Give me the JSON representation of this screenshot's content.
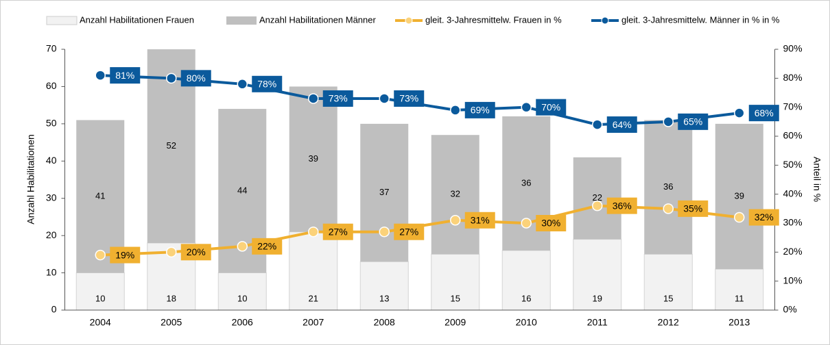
{
  "chart_data": {
    "type": "bar",
    "stacked": true,
    "categories": [
      "2004",
      "2005",
      "2006",
      "2007",
      "2008",
      "2009",
      "2010",
      "2011",
      "2012",
      "2013"
    ],
    "y_label": "Anzahl Habilitationen",
    "y2_label": "Anteil in %",
    "ylim": [
      0,
      70
    ],
    "yticks": [
      0,
      10,
      20,
      30,
      40,
      50,
      60,
      70
    ],
    "y2lim": [
      0,
      90
    ],
    "y2ticks": [
      {
        "value": 0,
        "label": "0%"
      },
      {
        "value": 10,
        "label": "10%"
      },
      {
        "value": 20,
        "label": "20%"
      },
      {
        "value": 30,
        "label": "30%"
      },
      {
        "value": 40,
        "label": "40%"
      },
      {
        "value": 50,
        "label": "50%"
      },
      {
        "value": 60,
        "label": "60%"
      },
      {
        "value": 70,
        "label": "70%"
      },
      {
        "value": 80,
        "label": "80%"
      },
      {
        "value": 90,
        "label": "90%"
      }
    ],
    "grid": false,
    "legend": "top",
    "series": [
      {
        "name": "Anzahl Habilitationen Frauen",
        "type": "bar",
        "color": "#f2f2f2",
        "values": [
          10,
          18,
          10,
          21,
          13,
          15,
          16,
          19,
          15,
          11
        ]
      },
      {
        "name": "Anzahl Habilitationen Männer",
        "type": "bar",
        "color": "#bfbfbf",
        "values": [
          41,
          52,
          44,
          39,
          37,
          32,
          36,
          22,
          36,
          39
        ]
      },
      {
        "name": "gleit. 3-Jahresmittelw. Frauen in %",
        "type": "line",
        "axis": "y2",
        "color": "#f0b030",
        "values": [
          19,
          20,
          22,
          27,
          27,
          31,
          30,
          36,
          35,
          32
        ],
        "value_labels": [
          "19%",
          "20%",
          "22%",
          "27%",
          "27%",
          "31%",
          "30%",
          "36%",
          "35%",
          "32%"
        ]
      },
      {
        "name": "gleit. 3-Jahresmittelw. Männer in % in %",
        "type": "line",
        "axis": "y2",
        "color": "#0b5a9c",
        "values": [
          81,
          80,
          78,
          73,
          73,
          69,
          70,
          64,
          65,
          68
        ],
        "value_labels": [
          "81%",
          "80%",
          "78%",
          "73%",
          "73%",
          "69%",
          "70%",
          "64%",
          "65%",
          "68%"
        ]
      }
    ]
  }
}
